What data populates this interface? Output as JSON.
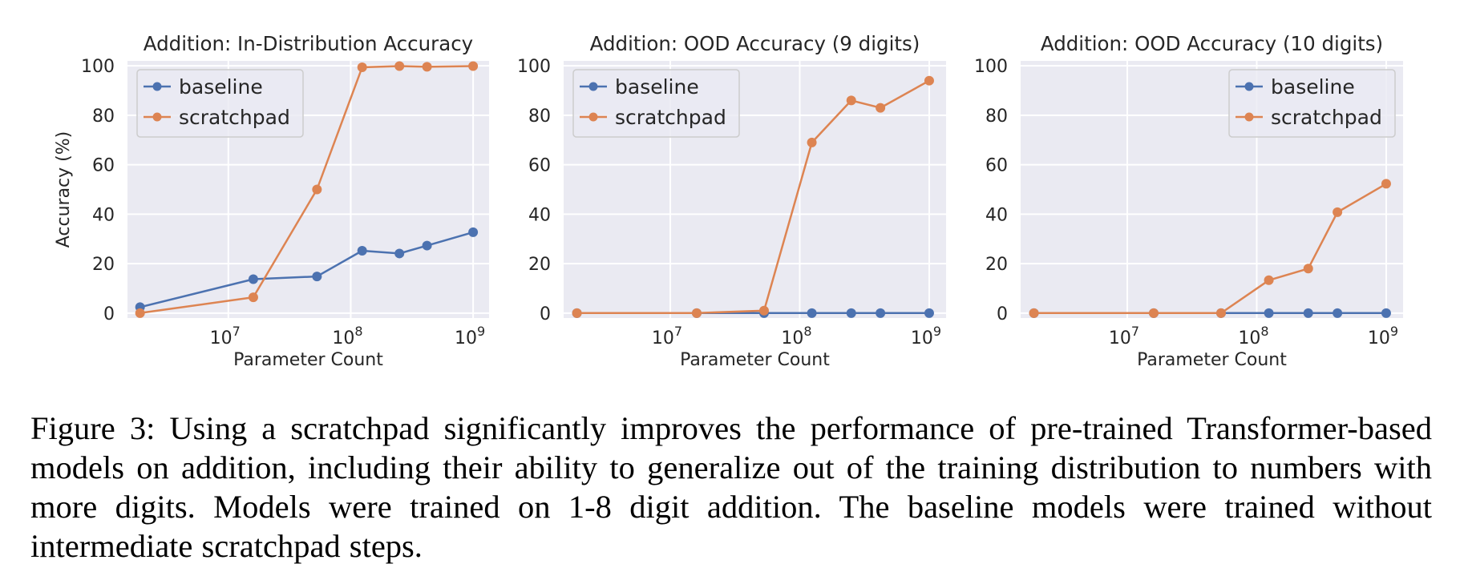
{
  "chart_data": [
    {
      "type": "line",
      "title": "Addition: In-Distribution Accuracy",
      "xlabel": "Parameter Count",
      "ylabel": "Accuracy (%)",
      "xscale": "log",
      "xlim": [
        1500000,
        1350000000
      ],
      "ylim": [
        -2,
        102
      ],
      "xticks": [
        {
          "value": 10000000,
          "base": "10",
          "exp": "7"
        },
        {
          "value": 100000000,
          "base": "10",
          "exp": "8"
        },
        {
          "value": 1000000000,
          "base": "10",
          "exp": "9"
        }
      ],
      "yticks": [
        0,
        20,
        40,
        60,
        80,
        100
      ],
      "grid": true,
      "legend_position": "upper-left",
      "x": [
        1900000,
        16000000,
        53000000,
        124000000,
        250000000,
        420000000,
        1000000000
      ],
      "series": [
        {
          "name": "baseline",
          "color": "#4c72b0",
          "values": [
            2.4,
            13.7,
            14.8,
            25.2,
            24.1,
            27.3,
            32.7
          ]
        },
        {
          "name": "scratchpad",
          "color": "#dd8452",
          "values": [
            0,
            6.4,
            50.0,
            99.4,
            99.9,
            99.6,
            99.9
          ]
        }
      ]
    },
    {
      "type": "line",
      "title": "Addition: OOD Accuracy (9 digits)",
      "xlabel": "Parameter Count",
      "ylabel": "",
      "xscale": "log",
      "xlim": [
        1500000,
        1350000000
      ],
      "ylim": [
        -2,
        102
      ],
      "xticks": [
        {
          "value": 10000000,
          "base": "10",
          "exp": "7"
        },
        {
          "value": 100000000,
          "base": "10",
          "exp": "8"
        },
        {
          "value": 1000000000,
          "base": "10",
          "exp": "9"
        }
      ],
      "yticks": [
        0,
        20,
        40,
        60,
        80,
        100
      ],
      "grid": true,
      "legend_position": "upper-left",
      "x": [
        1900000,
        16000000,
        53000000,
        124000000,
        250000000,
        420000000,
        1000000000
      ],
      "series": [
        {
          "name": "baseline",
          "color": "#4c72b0",
          "values": [
            0,
            0,
            0,
            0,
            0,
            0,
            0
          ]
        },
        {
          "name": "scratchpad",
          "color": "#dd8452",
          "values": [
            0,
            0,
            1.0,
            69.0,
            86.0,
            83.0,
            94.0
          ]
        }
      ]
    },
    {
      "type": "line",
      "title": "Addition: OOD Accuracy (10 digits)",
      "xlabel": "Parameter Count",
      "ylabel": "",
      "xscale": "log",
      "xlim": [
        1500000,
        1350000000
      ],
      "ylim": [
        -2,
        102
      ],
      "xticks": [
        {
          "value": 10000000,
          "base": "10",
          "exp": "7"
        },
        {
          "value": 100000000,
          "base": "10",
          "exp": "8"
        },
        {
          "value": 1000000000,
          "base": "10",
          "exp": "9"
        }
      ],
      "yticks": [
        0,
        20,
        40,
        60,
        80,
        100
      ],
      "grid": true,
      "legend_position": "upper-right",
      "x": [
        1900000,
        16000000,
        53000000,
        124000000,
        250000000,
        420000000,
        1000000000
      ],
      "series": [
        {
          "name": "baseline",
          "color": "#4c72b0",
          "values": [
            0,
            0,
            0,
            0,
            0,
            0,
            0
          ]
        },
        {
          "name": "scratchpad",
          "color": "#dd8452",
          "values": [
            0,
            0,
            0,
            13.3,
            18.0,
            40.8,
            52.3
          ]
        }
      ]
    }
  ],
  "caption": "Figure 3: Using a scratchpad significantly improves the performance of pre-trained Transformer-based models on addition, including their ability to generalize out of the training distribution to numbers with more digits. Models were trained on 1-8 digit addition. The baseline models were trained without intermediate scratchpad steps.",
  "style": {
    "plot_background": "#eaeaf2",
    "grid_color": "#ffffff",
    "text_color": "#262626"
  }
}
